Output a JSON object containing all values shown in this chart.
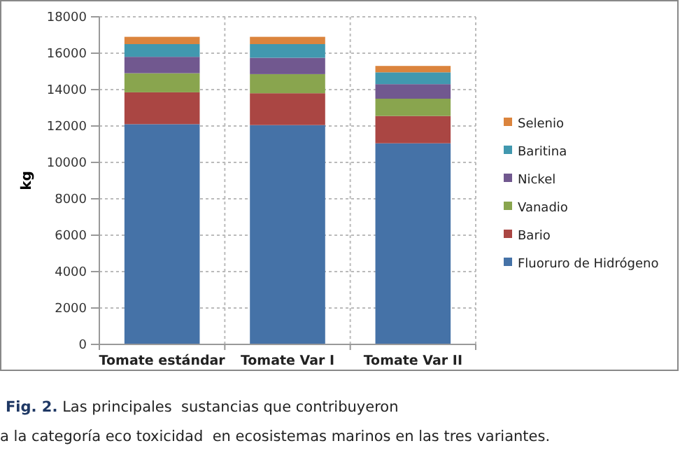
{
  "chart_data": {
    "type": "bar",
    "stacked": true,
    "ylabel": "kg",
    "categories": [
      "Tomate estándar",
      "Tomate Var I",
      "Tomate Var II"
    ],
    "series": [
      {
        "name": "Fluoruro de Hidrógeno",
        "color": "#4572a7",
        "values": [
          12100,
          12050,
          11050
        ]
      },
      {
        "name": "Bario",
        "color": "#aa4643",
        "values": [
          1750,
          1750,
          1500
        ]
      },
      {
        "name": "Vanadio",
        "color": "#89a54e",
        "values": [
          1050,
          1050,
          950
        ]
      },
      {
        "name": "Nickel",
        "color": "#71588f",
        "values": [
          900,
          900,
          800
        ]
      },
      {
        "name": "Baritina",
        "color": "#4198af",
        "values": [
          700,
          750,
          650
        ]
      },
      {
        "name": "Selenio",
        "color": "#db843d",
        "values": [
          400,
          400,
          350
        ]
      }
    ],
    "ylim": [
      0,
      18000
    ],
    "yticks": [
      0,
      2000,
      4000,
      6000,
      8000,
      10000,
      12000,
      14000,
      16000,
      18000
    ],
    "grid": true,
    "legend": "right",
    "annotations": [
      "Fig. 2. Las principales  sustancias que contribuyeron",
      "a la categoría eco toxicidad  en ecosistemas marinos en las tres variantes."
    ]
  }
}
